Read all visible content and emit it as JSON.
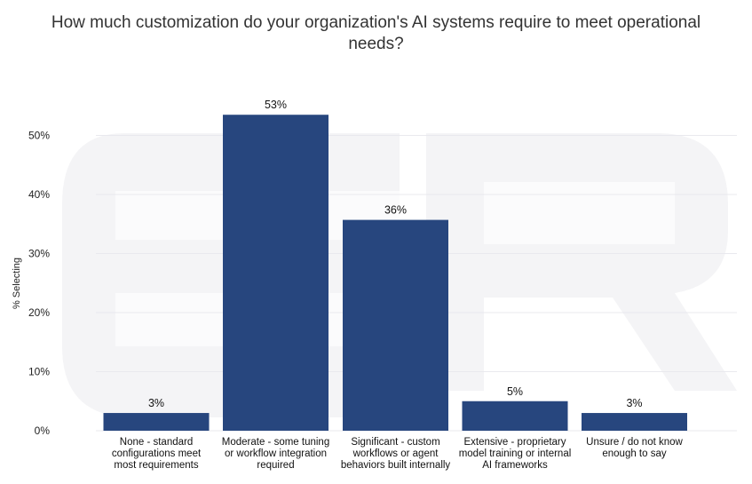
{
  "chart_data": {
    "type": "bar",
    "title_lines": [
      "How much customization do your organization's AI systems require to meet operational",
      "needs?"
    ],
    "xlabel": "",
    "ylabel": "% Selecting",
    "ylim": [
      0,
      55
    ],
    "yticks": [
      0,
      10,
      20,
      30,
      40,
      50
    ],
    "ytick_labels": [
      "0%",
      "10%",
      "20%",
      "30%",
      "40%",
      "50%"
    ],
    "grid": true,
    "categories": [
      [
        "None - standard",
        "configurations meet",
        "most requirements"
      ],
      [
        "Moderate - some tuning",
        "or workflow integration",
        "required"
      ],
      [
        "Significant - custom",
        "workflows or agent",
        "behaviors built internally"
      ],
      [
        "Extensive - proprietary",
        "model training or internal",
        "AI frameworks"
      ],
      [
        "Unsure / do not know",
        "enough to say"
      ]
    ],
    "values": [
      3,
      53.5,
      35.7,
      5,
      3
    ],
    "data_labels": [
      "3%",
      "53%",
      "36%",
      "5%",
      "3%"
    ],
    "bar_color": "#27467e"
  }
}
